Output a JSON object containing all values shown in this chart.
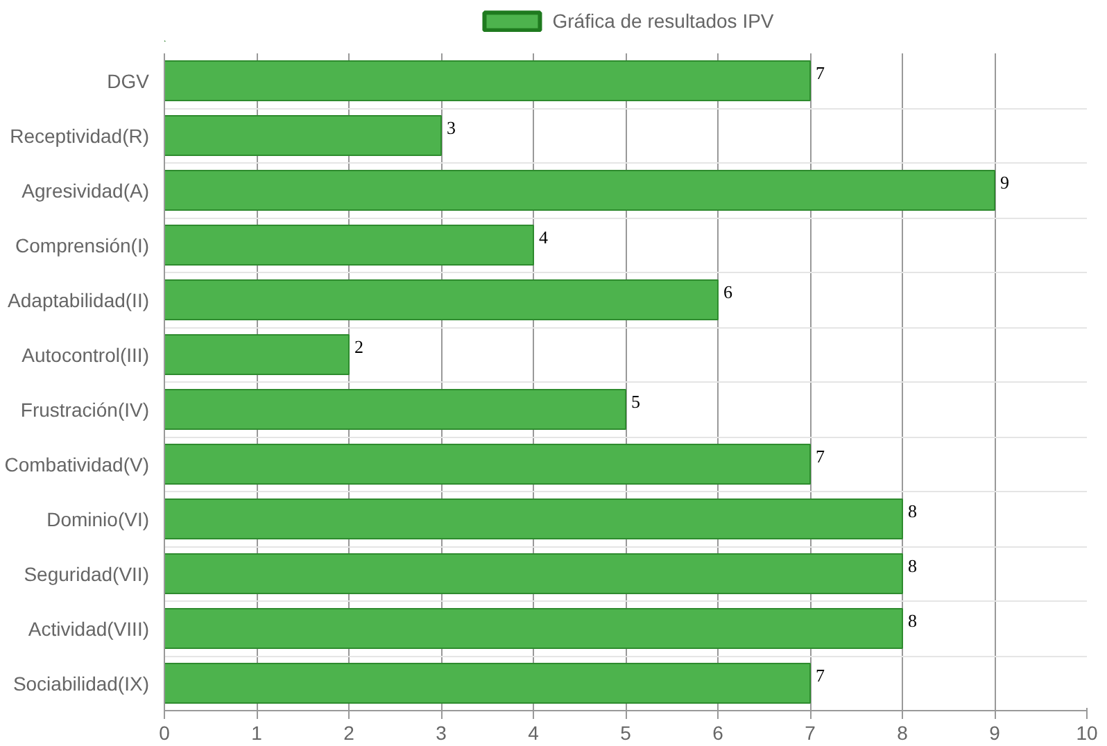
{
  "chart_data": {
    "type": "bar",
    "orientation": "horizontal",
    "categories": [
      "DGV",
      "Receptividad(R)",
      "Agresividad(A)",
      "Comprensión(I)",
      "Adaptabilidad(II)",
      "Autocontrol(III)",
      "Frustración(IV)",
      "Combatividad(V)",
      "Dominio(VI)",
      "Seguridad(VII)",
      "Actividad(VIII)",
      "Sociabilidad(IX)"
    ],
    "series": [
      {
        "name": "Gráfica de resultados IPV",
        "color": "#4db34d",
        "values": [
          7,
          3,
          9,
          4,
          6,
          2,
          5,
          7,
          8,
          8,
          8,
          7
        ]
      }
    ],
    "xlim": [
      0,
      10
    ],
    "xticks": [
      0,
      1,
      2,
      3,
      4,
      5,
      6,
      7,
      8,
      9,
      10
    ],
    "grid": true,
    "legend": "top",
    "data_labels": true
  }
}
